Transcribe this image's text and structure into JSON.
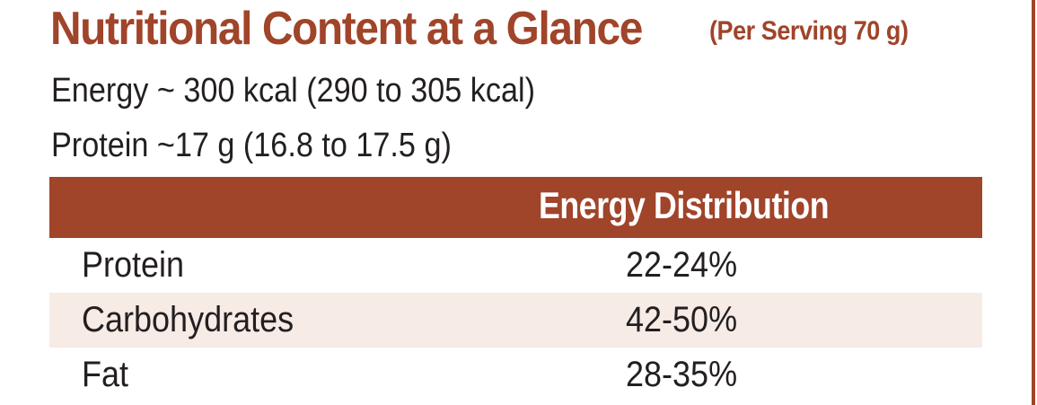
{
  "heading": {
    "title": "Nutritional Content at a Glance",
    "subtitle": "(Per Serving 70 g)"
  },
  "summary": {
    "energy": "Energy ~ 300 kcal (290 to 305 kcal)",
    "protein": "Protein ~17 g (16.8 to 17.5 g)"
  },
  "table": {
    "header": "Energy Distribution",
    "rows": [
      {
        "nutrient": "Protein",
        "value": "22-24%"
      },
      {
        "nutrient": "Carbohydrates",
        "value": "42-50%"
      },
      {
        "nutrient": "Fat",
        "value": "28-35%"
      }
    ]
  },
  "colors": {
    "accent": "#a0442a",
    "row_shade": "#f6ebe5",
    "text": "#231f20"
  }
}
